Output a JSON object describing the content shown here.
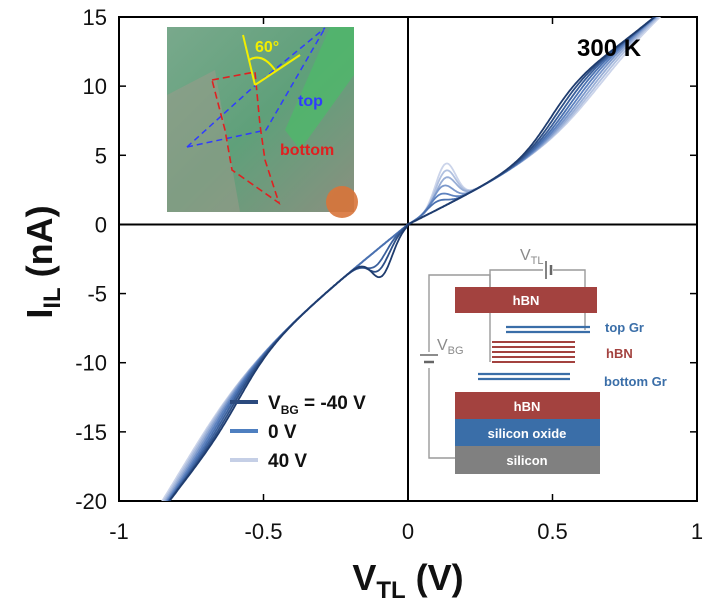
{
  "chart_data": {
    "type": "line",
    "xlabel": "V",
    "xlabel_sub": "TL",
    "xlabel_unit": "(V)",
    "ylabel": "I",
    "ylabel_sub": "IL",
    "ylabel_unit": "(nA)",
    "xlim": [
      -1,
      1
    ],
    "ylim": [
      -20,
      15
    ],
    "xticks": [
      "-1",
      "-0.5",
      "0",
      "0.5",
      "1"
    ],
    "yticks": [
      "15",
      "10",
      "5",
      "0",
      "-5",
      "-10",
      "-15",
      "-20"
    ],
    "temperature_label": "300 K",
    "legend": [
      {
        "pre": "V",
        "sub": "BG",
        "post": " = -40 V",
        "color": "#2b4a7e"
      },
      {
        "pre": "",
        "sub": "",
        "post": "0 V",
        "color": "#4e7fc0"
      },
      {
        "pre": "",
        "sub": "",
        "post": "40 V",
        "color": "#c5cfe6"
      }
    ],
    "series": [
      {
        "vbg": -40,
        "color": "#1f3c6e",
        "resonances": [
          {
            "v": 0.49,
            "sharp": 1.0
          },
          {
            "v": -0.58,
            "sharp": 1.0
          }
        ],
        "low_peak": {
          "v": -0.09,
          "amp": 2.2
        }
      },
      {
        "vbg": -30,
        "color": "#2d4f86",
        "resonances": [
          {
            "v": 0.51,
            "sharp": 0.95
          },
          {
            "v": -0.6,
            "sharp": 0.95
          }
        ],
        "low_peak": {
          "v": -0.1,
          "amp": 1.6
        }
      },
      {
        "vbg": -20,
        "color": "#3b609c",
        "resonances": [
          {
            "v": 0.53,
            "sharp": 0.9
          },
          {
            "v": -0.62,
            "sharp": 0.9
          }
        ],
        "low_peak": {
          "v": -0.11,
          "amp": 1.1
        }
      },
      {
        "vbg": -10,
        "color": "#4a71b0",
        "resonances": [
          {
            "v": 0.55,
            "sharp": 0.85
          },
          {
            "v": -0.64,
            "sharp": 0.85
          }
        ],
        "low_peak": {
          "v": 0.1,
          "amp": 0.6
        }
      },
      {
        "vbg": 0,
        "color": "#5d82bf",
        "resonances": [
          {
            "v": 0.57,
            "sharp": 0.8
          },
          {
            "v": -0.66,
            "sharp": 0.8
          }
        ],
        "low_peak": {
          "v": 0.11,
          "amp": 1.0
        }
      },
      {
        "vbg": 10,
        "color": "#7b98cb",
        "resonances": [
          {
            "v": 0.59,
            "sharp": 0.75
          },
          {
            "v": -0.68,
            "sharp": 0.75
          }
        ],
        "low_peak": {
          "v": 0.12,
          "amp": 1.5
        }
      },
      {
        "vbg": 20,
        "color": "#98aed6",
        "resonances": [
          {
            "v": 0.61,
            "sharp": 0.7
          },
          {
            "v": -0.7,
            "sharp": 0.7
          }
        ],
        "low_peak": {
          "v": 0.13,
          "amp": 2.0
        }
      },
      {
        "vbg": 30,
        "color": "#b1c1e0",
        "resonances": [
          {
            "v": 0.63,
            "sharp": 0.65
          },
          {
            "v": -0.72,
            "sharp": 0.65
          }
        ],
        "low_peak": {
          "v": 0.13,
          "amp": 2.5
        }
      },
      {
        "vbg": 40,
        "color": "#cbd4ea",
        "resonances": [
          {
            "v": 0.65,
            "sharp": 0.6
          },
          {
            "v": -0.74,
            "sharp": 0.6
          }
        ],
        "low_peak": {
          "v": 0.13,
          "amp": 3.0
        }
      }
    ],
    "inset_photo": {
      "angle_label": "60°",
      "top_label": "top",
      "bottom_label": "bottom",
      "colors": {
        "background": "#6fa884",
        "top": "#2f3bff",
        "bottom": "#e02020",
        "angle": "#f2ee00"
      }
    },
    "inset_schematic": {
      "vtl_pre": "V",
      "vtl_sub": "TL",
      "vbg_pre": "V",
      "vbg_sub": "BG",
      "layers": [
        {
          "label": "hBN",
          "color": "#a3423f"
        },
        {
          "label": "top Gr",
          "color": "#3a6ea8"
        },
        {
          "label": "hBN",
          "color": "#a3423f"
        },
        {
          "label": "bottom Gr",
          "color": "#3a6ea8"
        },
        {
          "label": "hBN",
          "color": "#a3423f"
        },
        {
          "label": "silicon oxide",
          "color": "#3a6ea8"
        },
        {
          "label": "silicon",
          "color": "#808080"
        }
      ]
    }
  }
}
